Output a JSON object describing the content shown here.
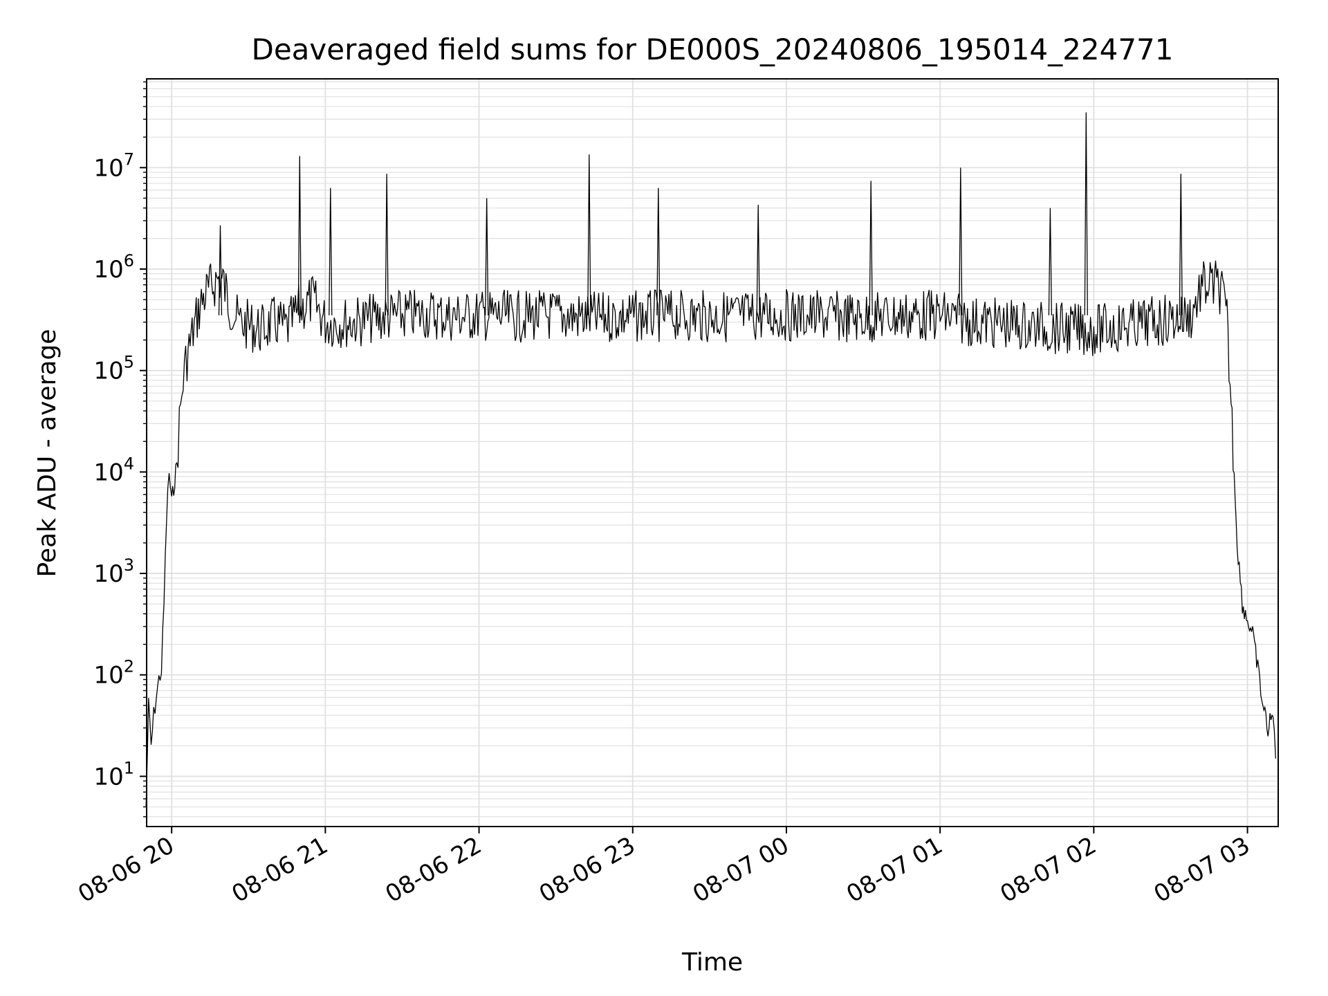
{
  "chart_data": {
    "type": "line",
    "title": "Deaveraged field sums for DE000S_20240806_195014_224771",
    "xlabel": "Time",
    "ylabel": "Peak ADU - average",
    "yscale": "log",
    "ylim": [
      3.2,
      75000000
    ],
    "xlim": [
      "2024-08-06 19:50:14",
      "2024-08-07 03:12:00"
    ],
    "grid": true,
    "line_color": "#000000",
    "grid_color": "#e0e0e0",
    "x_ticks": [
      "2024-08-06 20:00",
      "2024-08-06 21:00",
      "2024-08-06 22:00",
      "2024-08-06 23:00",
      "2024-08-07 00:00",
      "2024-08-07 01:00",
      "2024-08-07 02:00",
      "2024-08-07 03:00"
    ],
    "x_tick_labels": [
      "08-06 20",
      "08-06 21",
      "08-06 22",
      "08-06 23",
      "08-07 00",
      "08-07 01",
      "08-07 02",
      "08-07 03"
    ],
    "y_ticks": [
      {
        "base": "10",
        "exp": "1"
      },
      {
        "base": "10",
        "exp": "2"
      },
      {
        "base": "10",
        "exp": "3"
      },
      {
        "base": "10",
        "exp": "4"
      },
      {
        "base": "10",
        "exp": "5"
      },
      {
        "base": "10",
        "exp": "6"
      },
      {
        "base": "10",
        "exp": "7"
      }
    ],
    "series": [
      {
        "x": [
          "2024-08-06 19:50",
          "2024-08-06 19:51",
          "2024-08-06 19:52",
          "2024-08-06 19:53",
          "2024-08-06 19:54",
          "2024-08-06 19:55",
          "2024-08-06 19:56",
          "2024-08-06 19:57",
          "2024-08-06 19:58",
          "2024-08-06 19:59",
          "2024-08-06 20:00",
          "2024-08-06 20:02",
          "2024-08-06 20:03",
          "2024-08-06 20:04",
          "2024-08-06 20:05",
          "2024-08-06 20:06",
          "2024-08-06 20:08",
          "2024-08-06 20:10",
          "2024-08-06 20:12",
          "2024-08-06 20:14",
          "2024-08-06 20:16",
          "2024-08-06 20:18",
          "2024-08-06 20:20",
          "2024-08-06 20:22",
          "2024-08-06 20:26",
          "2024-08-06 20:30",
          "2024-08-06 20:35",
          "2024-08-06 20:40",
          "2024-08-06 20:45",
          "2024-08-06 20:50",
          "2024-08-06 20:55",
          "2024-08-06 21:00",
          "2024-08-06 21:10",
          "2024-08-06 21:20",
          "2024-08-06 21:30",
          "2024-08-06 21:40",
          "2024-08-06 21:50",
          "2024-08-06 22:00",
          "2024-08-06 22:15",
          "2024-08-06 22:30",
          "2024-08-06 22:45",
          "2024-08-06 23:00",
          "2024-08-06 23:15",
          "2024-08-06 23:30",
          "2024-08-06 23:45",
          "2024-08-07 00:00",
          "2024-08-07 00:15",
          "2024-08-07 00:30",
          "2024-08-07 00:45",
          "2024-08-07 01:00",
          "2024-08-07 01:15",
          "2024-08-07 01:30",
          "2024-08-07 01:45",
          "2024-08-07 02:00",
          "2024-08-07 02:15",
          "2024-08-07 02:30",
          "2024-08-07 02:38",
          "2024-08-07 02:42",
          "2024-08-07 02:45",
          "2024-08-07 02:48",
          "2024-08-07 02:50",
          "2024-08-07 02:52",
          "2024-08-07 02:54",
          "2024-08-07 02:56",
          "2024-08-07 02:58",
          "2024-08-07 03:00",
          "2024-08-07 03:02",
          "2024-08-07 03:04",
          "2024-08-07 03:06",
          "2024-08-07 03:08",
          "2024-08-07 03:10",
          "2024-08-07 03:11"
        ],
        "y": [
          5,
          50,
          20,
          40,
          60,
          90,
          110,
          500,
          3500,
          10000,
          5000,
          12000,
          30000,
          60000,
          100000,
          140000,
          220000,
          350000,
          500000,
          600000,
          700000,
          800000,
          750000,
          500000,
          300000,
          280000,
          250000,
          300000,
          260000,
          400000,
          500000,
          300000,
          300000,
          330000,
          350000,
          360000,
          340000,
          350000,
          340000,
          350000,
          330000,
          340000,
          350000,
          340000,
          345000,
          350000,
          340000,
          330000,
          345000,
          350000,
          300000,
          280000,
          260000,
          250000,
          280000,
          320000,
          350000,
          650000,
          700000,
          680000,
          600000,
          300000,
          30000,
          2000,
          500,
          350,
          250,
          120,
          50,
          30,
          40,
          15
        ]
      }
    ],
    "spikes": [
      {
        "x": "2024-08-06 20:50",
        "y": 13000000
      },
      {
        "x": "2024-08-06 21:02",
        "y": 6300000
      },
      {
        "x": "2024-08-06 21:24",
        "y": 8700000
      },
      {
        "x": "2024-08-06 22:03",
        "y": 5000000
      },
      {
        "x": "2024-08-06 22:43",
        "y": 13500000
      },
      {
        "x": "2024-08-06 23:10",
        "y": 6300000
      },
      {
        "x": "2024-08-06 23:49",
        "y": 4300000
      },
      {
        "x": "2024-08-07 00:33",
        "y": 7400000
      },
      {
        "x": "2024-08-07 01:08",
        "y": 10000000
      },
      {
        "x": "2024-08-07 01:43",
        "y": 4000000
      },
      {
        "x": "2024-08-07 01:57",
        "y": 35000000
      },
      {
        "x": "2024-08-07 02:34",
        "y": 8700000
      },
      {
        "x": "2024-08-06 20:19",
        "y": 2700000
      }
    ]
  }
}
